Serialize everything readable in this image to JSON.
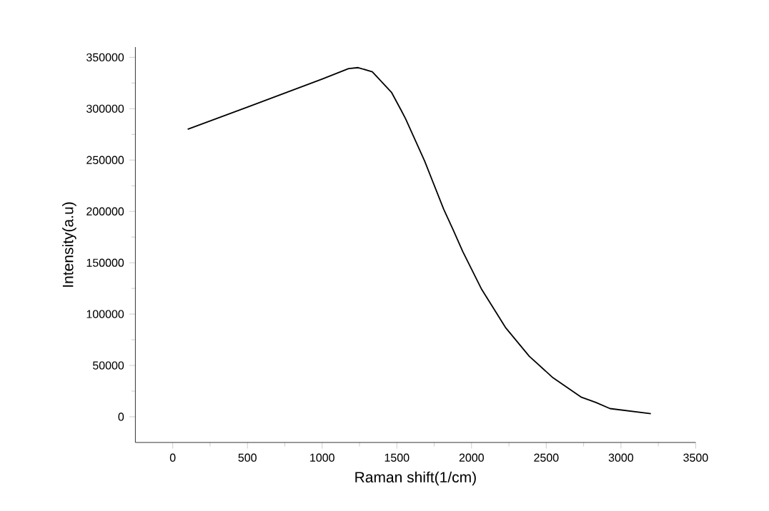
{
  "chart_data": {
    "type": "line",
    "xlabel": "Raman shift(1/cm)",
    "ylabel": "Intensity(a.u)",
    "x": [
      100,
      509,
      1002,
      1177,
      1241,
      1336,
      1464,
      1527,
      1559,
      1686,
      1814,
      1877,
      1941,
      2068,
      2227,
      2386,
      2545,
      2736,
      2832,
      2927,
      3200
    ],
    "series": [
      {
        "color": "#000000",
        "values": [
          280000,
          302000,
          329000,
          339000,
          340000,
          336000,
          316000,
          299000,
          290000,
          249000,
          202000,
          182000,
          161000,
          124000,
          87000,
          59000,
          38000,
          19000,
          14000,
          8000,
          3000
        ]
      }
    ],
    "xlim": [
      -250,
      3500
    ],
    "ylim": [
      -25000,
      360000
    ],
    "xticks": [
      0,
      500,
      1000,
      1500,
      2000,
      2500,
      3000,
      3500
    ],
    "yticks": [
      0,
      50000,
      100000,
      150000,
      200000,
      250000,
      300000,
      350000
    ],
    "grid": false
  }
}
